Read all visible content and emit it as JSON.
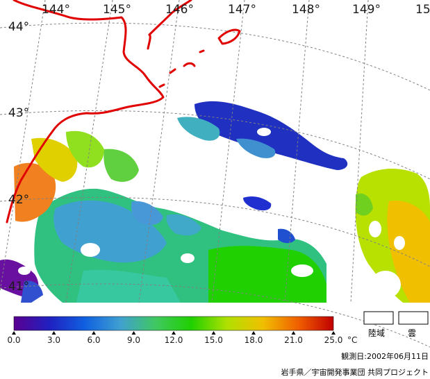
{
  "map": {
    "longitude_labels": [
      "144°",
      "145°",
      "146°",
      "147°",
      "148°",
      "149°",
      "15"
    ],
    "latitude_labels": [
      "44°",
      "43°",
      "42°",
      "41°"
    ]
  },
  "legend": {
    "ticks": [
      "0.0",
      "3.0",
      "6.0",
      "9.0",
      "12.0",
      "15.0",
      "18.0",
      "21.0",
      "25.0"
    ],
    "unit": "°C",
    "colors": [
      "#5a0090",
      "#2020c0",
      "#1060e0",
      "#40a0d0",
      "#40c860",
      "#20d000",
      "#b0e000",
      "#f0c000",
      "#f06000",
      "#c00000"
    ],
    "land_label": "陸域",
    "cloud_label": "雲"
  },
  "footer": {
    "observation_date": "観測日:2002年06月11日",
    "credit": "岩手県／宇宙開発事業団 共同プロジェクト"
  }
}
